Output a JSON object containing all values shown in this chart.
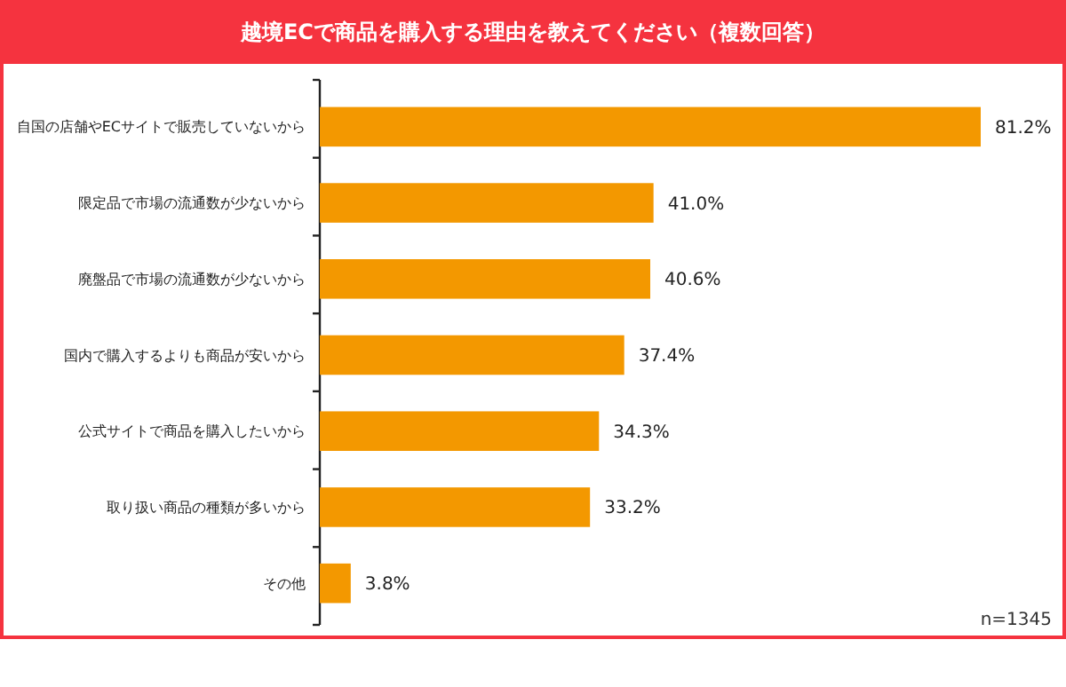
{
  "chart_data": {
    "type": "bar",
    "orientation": "horizontal",
    "title": "越境ECで商品を購入する理由を教えてください（複数回答）",
    "categories": [
      "自国の店舗やECサイトで販売していないから",
      "限定品で市場の流通数が少ないから",
      "廃盤品で市場の流通数が少ないから",
      "国内で購入するよりも商品が安いから",
      "公式サイトで商品を購入したいから",
      "取り扱い商品の種類が多いから",
      "その他"
    ],
    "values": [
      81.2,
      41.0,
      40.6,
      37.4,
      34.3,
      33.2,
      3.8
    ],
    "value_labels": [
      "81.2%",
      "41.0%",
      "40.6%",
      "37.4%",
      "34.3%",
      "33.2%",
      "3.8%"
    ],
    "color": "#f39800",
    "annotations": [
      "n=1345"
    ]
  }
}
